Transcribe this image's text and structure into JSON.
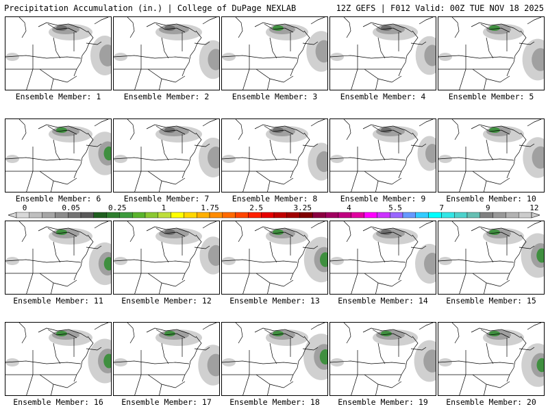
{
  "header": {
    "title_left": "Precipitation Accumulation (in.) | College of DuPage NEXLAB",
    "title_right": "12Z GEFS | F012 Valid: 00Z TUE NOV 18 2025"
  },
  "member_label_prefix": "Ensemble Member:",
  "members": [
    {
      "number": 1,
      "label": "Ensemble Member: 1",
      "intensity": 0.5
    },
    {
      "number": 2,
      "label": "Ensemble Member: 2",
      "intensity": 0.45
    },
    {
      "number": 3,
      "label": "Ensemble Member: 3",
      "intensity": 0.55
    },
    {
      "number": 4,
      "label": "Ensemble Member: 4",
      "intensity": 0.45
    },
    {
      "number": 5,
      "label": "Ensemble Member: 5",
      "intensity": 0.6
    },
    {
      "number": 6,
      "label": "Ensemble Member: 6",
      "intensity": 0.7
    },
    {
      "number": 7,
      "label": "Ensemble Member: 7",
      "intensity": 0.5
    },
    {
      "number": 8,
      "label": "Ensemble Member: 8",
      "intensity": 0.4
    },
    {
      "number": 9,
      "label": "Ensemble Member: 9",
      "intensity": 0.25
    },
    {
      "number": 10,
      "label": "Ensemble Member: 10",
      "intensity": 0.55
    },
    {
      "number": 11,
      "label": "Ensemble Member: 11",
      "intensity": 0.65
    },
    {
      "number": 12,
      "label": "Ensemble Member: 12",
      "intensity": 0.4
    },
    {
      "number": 13,
      "label": "Ensemble Member: 13",
      "intensity": 0.8
    },
    {
      "number": 14,
      "label": "Ensemble Member: 14",
      "intensity": 0.5
    },
    {
      "number": 15,
      "label": "Ensemble Member: 15",
      "intensity": 0.75
    },
    {
      "number": 16,
      "label": "Ensemble Member: 16",
      "intensity": 0.75
    },
    {
      "number": 17,
      "label": "Ensemble Member: 17",
      "intensity": 0.55
    },
    {
      "number": 18,
      "label": "Ensemble Member: 18",
      "intensity": 0.85
    },
    {
      "number": 19,
      "label": "Ensemble Member: 19",
      "intensity": 0.6
    },
    {
      "number": 20,
      "label": "Ensemble Member: 20",
      "intensity": 0.7
    }
  ],
  "colorbar": {
    "unit": "in.",
    "tick_labels": [
      "0",
      "0.05",
      "0.25",
      "1",
      "1.75",
      "2.5",
      "3.25",
      "4",
      "5.5",
      "7",
      "9",
      "12"
    ],
    "colors": [
      "#d9d9d9",
      "#bfbfbf",
      "#a6a6a6",
      "#8c8c8c",
      "#737373",
      "#595959",
      "#1f5f1f",
      "#2e7d2e",
      "#3c9a3c",
      "#5ab42d",
      "#8bc832",
      "#bede3c",
      "#ffff00",
      "#ffd700",
      "#ffb000",
      "#ff8c00",
      "#ff6a00",
      "#ff4500",
      "#ff2000",
      "#e60000",
      "#c00000",
      "#a00000",
      "#800000",
      "#8b0040",
      "#a00060",
      "#c00080",
      "#e000a0",
      "#ff00ff",
      "#cc33ff",
      "#9966ff",
      "#6699ff",
      "#33ccff",
      "#00ffff",
      "#33e6e6",
      "#4dd2cc",
      "#66bfb3",
      "#808080",
      "#999999",
      "#b3b3b3",
      "#cccccc"
    ]
  },
  "colors": {
    "precip_light": "#d0d0d0",
    "precip_mid": "#a0a0a0",
    "precip_dark": "#6e6e6e",
    "precip_green": "#3f8f3f",
    "border": "#000000"
  }
}
